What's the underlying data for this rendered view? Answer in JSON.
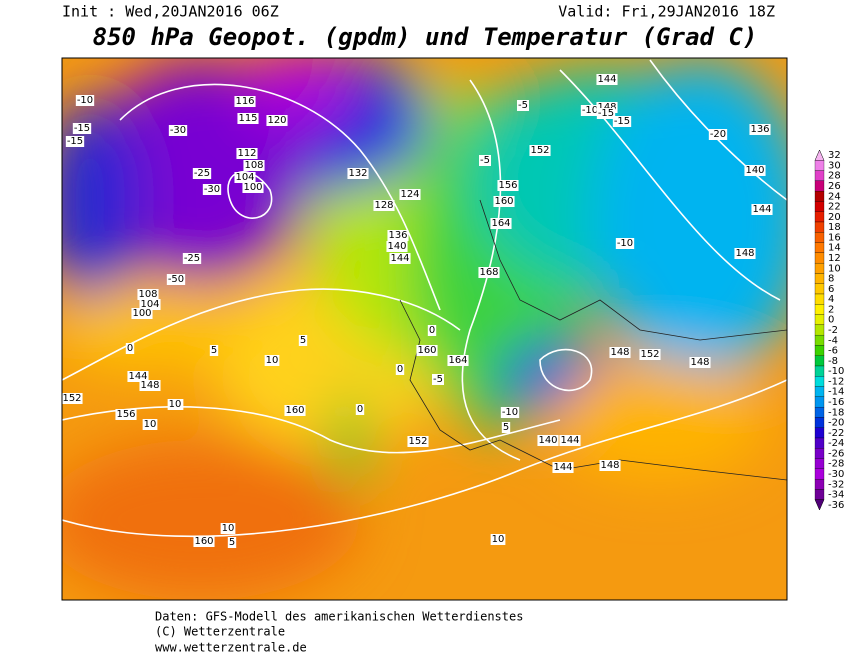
{
  "header": {
    "init": "Init : Wed,20JAN2016 06Z",
    "valid": "Valid: Fri,29JAN2016 18Z",
    "title": "850 hPa Geopot. (gpdm) und Temperatur (Grad C)"
  },
  "colorbar": {
    "values": [
      32,
      30,
      28,
      26,
      24,
      22,
      20,
      18,
      16,
      14,
      12,
      10,
      8,
      6,
      4,
      2,
      0,
      -2,
      -4,
      -6,
      -8,
      -10,
      -12,
      -14,
      -16,
      -18,
      -20,
      -22,
      -24,
      -26,
      -28,
      -30,
      -32,
      -34,
      -36
    ],
    "colors": [
      "#f5b5f0",
      "#ee80e8",
      "#e040c8",
      "#c80078",
      "#b40000",
      "#d20000",
      "#e61e00",
      "#f04000",
      "#f86000",
      "#ff7800",
      "#ff8c00",
      "#ffa000",
      "#ffb400",
      "#ffc800",
      "#ffdc00",
      "#fff000",
      "#e6f000",
      "#b4e600",
      "#78dc00",
      "#3cd200",
      "#00c83c",
      "#00d296",
      "#00dcdc",
      "#00b4f0",
      "#0096f0",
      "#0064e6",
      "#0032dc",
      "#1e00d2",
      "#5000c8",
      "#7800c8",
      "#9600d2",
      "#aa00dc",
      "#8c00b4",
      "#6e0096",
      "#500078"
    ]
  },
  "map_labels": [
    -10,
    -15,
    -15,
    -30,
    116,
    115,
    120,
    112,
    108,
    104,
    100,
    -25,
    -30,
    -25,
    -50,
    108,
    104,
    100,
    144,
    148,
    152,
    156,
    10,
    10,
    160,
    160,
    5,
    0,
    5,
    10,
    128,
    132,
    124,
    136,
    140,
    144,
    152,
    156,
    160,
    164,
    168,
    -10,
    -5,
    -5,
    144,
    148,
    -15,
    -20,
    136,
    140,
    144,
    148,
    -10,
    -15,
    148,
    152,
    148,
    140,
    144,
    144,
    148,
    152,
    10,
    10,
    5,
    0,
    0,
    -5,
    10,
    -10,
    5,
    160,
    164,
    0
  ],
  "footer": [
    "Daten: GFS-Modell des amerikanischen Wetterdienstes",
    "(C) Wetterzentrale",
    "www.wetterzentrale.de"
  ]
}
